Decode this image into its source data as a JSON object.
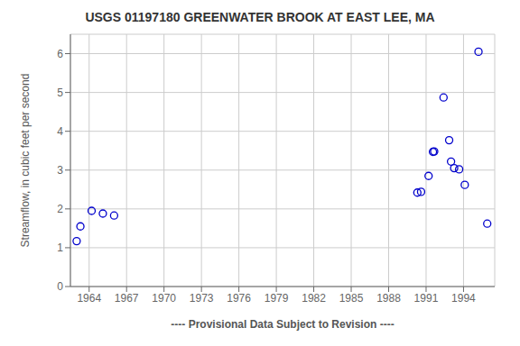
{
  "chart_data": {
    "type": "scatter",
    "title": "USGS 01197180 GREENWATER BROOK AT EAST LEE, MA",
    "ylabel": "Streamflow, in cubic feet per second",
    "xlabel": "---- Provisional Data Subject to Revision ----",
    "x": [
      1963.0,
      1963.3,
      1964.2,
      1965.1,
      1966.0,
      1990.3,
      1990.6,
      1991.2,
      1991.55,
      1991.65,
      1992.4,
      1992.85,
      1993.0,
      1993.25,
      1993.65,
      1994.1,
      1995.2,
      1995.9
    ],
    "values": [
      1.17,
      1.55,
      1.95,
      1.88,
      1.83,
      2.42,
      2.44,
      2.85,
      3.47,
      3.48,
      4.87,
      3.77,
      3.22,
      3.05,
      3.02,
      2.62,
      6.05,
      1.62
    ],
    "color": "#0000CC",
    "marker": "circle",
    "xlim": [
      1962.5,
      1996.5
    ],
    "ylim": [
      0.0,
      6.5
    ],
    "xticks": [
      1964,
      1967,
      1970,
      1973,
      1976,
      1979,
      1982,
      1985,
      1988,
      1991,
      1994
    ],
    "yticks": [
      0,
      1,
      2,
      3,
      4,
      5,
      6
    ],
    "grid": true
  }
}
